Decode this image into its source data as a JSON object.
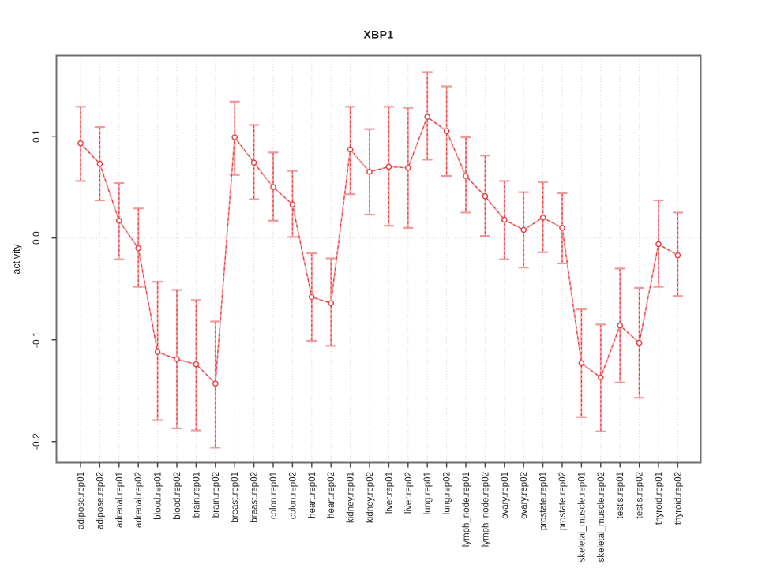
{
  "figure": {
    "background": "#ffffff"
  },
  "chart_data": {
    "type": "line",
    "subtype": "points-with-error-bars",
    "title": "XBP1",
    "xlabel": "",
    "ylabel": "activity",
    "categories": [
      "adipose.rep01",
      "adipose.rep02",
      "adrenal.rep01",
      "adrenal.rep02",
      "blood.rep01",
      "blood.rep02",
      "brain.rep01",
      "brain.rep02",
      "breast.rep01",
      "breast.rep02",
      "colon.rep01",
      "colon.rep02",
      "heart.rep01",
      "heart.rep02",
      "kidney.rep01",
      "kidney.rep02",
      "liver.rep01",
      "liver.rep02",
      "lung.rep01",
      "lung.rep02",
      "lymph_node.rep01",
      "lymph_node.rep02",
      "ovary.rep01",
      "ovary.rep02",
      "prostate.rep01",
      "prostate.rep02",
      "skeletal_muscle.rep01",
      "skeletal_muscle.rep02",
      "testis.rep01",
      "testis.rep02",
      "thyroid.rep01",
      "thyroid.rep02"
    ],
    "series": [
      {
        "name": "XBP1",
        "values": [
          0.093,
          0.073,
          0.017,
          -0.01,
          -0.112,
          -0.119,
          -0.124,
          -0.143,
          0.099,
          0.074,
          0.05,
          0.033,
          -0.058,
          -0.064,
          0.087,
          0.065,
          0.07,
          0.069,
          0.119,
          0.105,
          0.061,
          0.041,
          0.018,
          0.008,
          0.02,
          0.01,
          -0.123,
          -0.137,
          -0.086,
          -0.103,
          -0.006,
          -0.017
        ],
        "ci_low": [
          0.056,
          0.037,
          -0.021,
          -0.048,
          -0.179,
          -0.187,
          -0.189,
          -0.206,
          0.062,
          0.038,
          0.017,
          0.001,
          -0.101,
          -0.106,
          0.043,
          0.023,
          0.012,
          0.01,
          0.077,
          0.061,
          0.025,
          0.002,
          -0.021,
          -0.029,
          -0.014,
          -0.025,
          -0.176,
          -0.19,
          -0.142,
          -0.157,
          -0.048,
          -0.057
        ],
        "ci_high": [
          0.129,
          0.109,
          0.054,
          0.029,
          -0.043,
          -0.051,
          -0.061,
          -0.082,
          0.134,
          0.111,
          0.084,
          0.066,
          -0.015,
          -0.02,
          0.129,
          0.107,
          0.129,
          0.128,
          0.163,
          0.149,
          0.099,
          0.081,
          0.056,
          0.045,
          0.055,
          0.044,
          -0.07,
          -0.085,
          -0.03,
          -0.049,
          0.037,
          0.025
        ]
      }
    ],
    "yticks": [
      0.1,
      0.0,
      -0.1,
      -0.2
    ],
    "ytick_labels": [
      "0.1",
      "0.0",
      "-0.1",
      "-0.2"
    ],
    "ylim": [
      -0.221,
      0.179
    ],
    "grid": {
      "vertical": "dotted line at every category",
      "horizontal": "dotted line at 0 only"
    },
    "legend": "none",
    "colors": {
      "point_and_line": "#e63b3e",
      "error_bar_fill": "#f5a3a3",
      "error_bar_cap": "#f2989a",
      "gridline": "#d2d2d2",
      "plot_border": "#6f6f6f",
      "axis_tick": "#404040",
      "text": "#262626",
      "background": "#ffffff"
    }
  }
}
